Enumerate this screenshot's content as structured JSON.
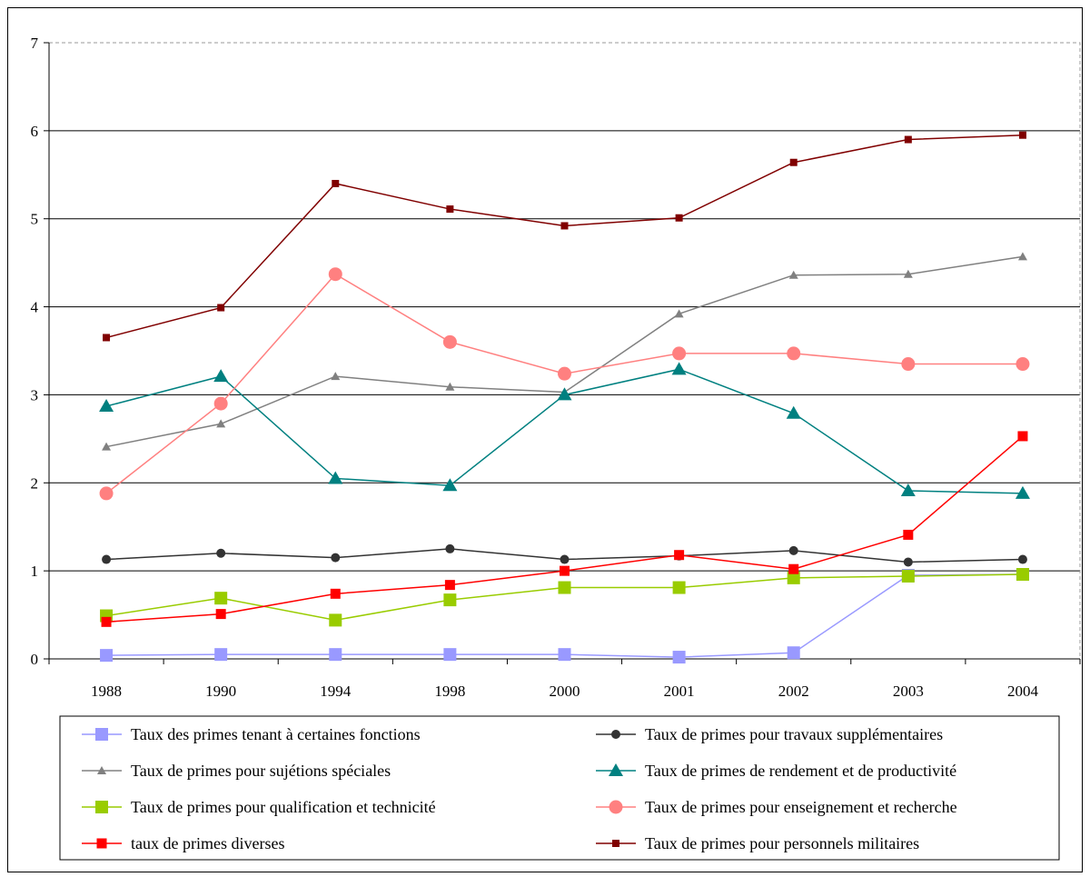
{
  "chart_data": {
    "type": "line",
    "categories": [
      "1988",
      "1990",
      "1994",
      "1998",
      "2000",
      "2001",
      "2002",
      "2003",
      "2004"
    ],
    "ylim": [
      0,
      7
    ],
    "yticks": [
      "0",
      "1",
      "2",
      "3",
      "4",
      "5",
      "6",
      "7"
    ],
    "grid": "horizontal",
    "legend_position": "bottom",
    "series": [
      {
        "name": "Taux des primes tenant à certaines fonctions",
        "color": "#9999ff",
        "marker": "square-large",
        "values": [
          0.04,
          0.05,
          0.05,
          0.05,
          0.05,
          0.02,
          0.07,
          0.95,
          0.96
        ]
      },
      {
        "name": "Taux de primes pour travaux supplémentaires",
        "color": "#333333",
        "marker": "circle-small",
        "values": [
          1.13,
          1.2,
          1.15,
          1.25,
          1.13,
          1.17,
          1.23,
          1.1,
          1.13
        ]
      },
      {
        "name": "Taux de primes pour sujétions spéciales",
        "color": "#808080",
        "marker": "triangle-small",
        "values": [
          2.41,
          2.67,
          3.21,
          3.09,
          3.03,
          3.92,
          4.36,
          4.37,
          4.57
        ]
      },
      {
        "name": "Taux de primes de rendement et de productivité",
        "color": "#008080",
        "marker": "triangle-large",
        "values": [
          2.87,
          3.21,
          2.05,
          1.97,
          3.0,
          3.29,
          2.79,
          1.91,
          1.88
        ]
      },
      {
        "name": "Taux de primes pour qualification et technicité",
        "color": "#99cc00",
        "marker": "square-large",
        "values": [
          0.49,
          0.69,
          0.44,
          0.67,
          0.81,
          0.81,
          0.92,
          0.94,
          0.96
        ]
      },
      {
        "name": "Taux de primes pour enseignement et recherche",
        "color": "#ff8080",
        "marker": "circle-large",
        "values": [
          1.88,
          2.9,
          4.37,
          3.6,
          3.24,
          3.47,
          3.47,
          3.35,
          3.35
        ]
      },
      {
        "name": "taux de primes diverses",
        "color": "#ff0000",
        "marker": "square-medium",
        "values": [
          0.42,
          0.51,
          0.74,
          0.84,
          1.0,
          1.18,
          1.02,
          1.41,
          2.53
        ]
      },
      {
        "name": "Taux de primes pour personnels militaires",
        "color": "#800000",
        "marker": "square-small",
        "values": [
          3.65,
          3.99,
          5.4,
          5.11,
          4.92,
          5.01,
          5.64,
          5.9,
          5.95
        ]
      }
    ]
  }
}
